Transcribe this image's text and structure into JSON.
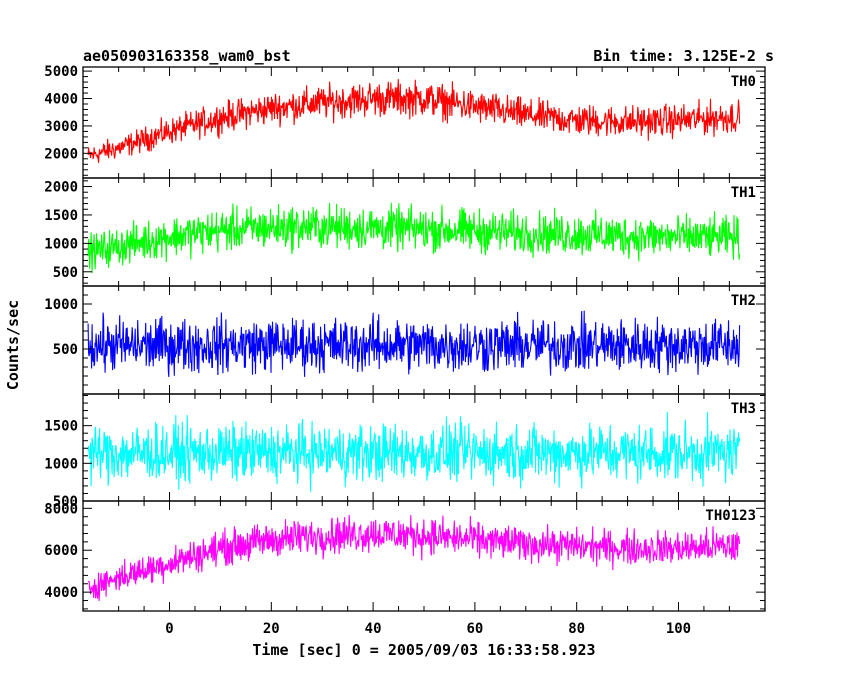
{
  "header": {
    "title": "ae050903163358_wam0_bst",
    "bin_time": "Bin time: 3.125E-2 s"
  },
  "chart_data": {
    "type": "line",
    "title": "ae050903163358_wam0_bst",
    "subtitle": "Bin time: 3.125E-2 s",
    "xlabel": "Time [sec] 0 = 2005/09/03 16:33:58.923",
    "ylabel": "Counts/sec",
    "xlim": [
      -17,
      117
    ],
    "x_ticks": [
      0,
      20,
      40,
      60,
      80,
      100
    ],
    "x_tick_labels": [
      "0",
      "20",
      "40",
      "60",
      "80",
      "100"
    ],
    "data_x_range": [
      -16,
      112
    ],
    "panels": [
      {
        "name": "TH0",
        "color": "#ff0000",
        "ylim": [
          1100,
          5150
        ],
        "yticks": [
          2000,
          3000,
          4000,
          5000
        ],
        "ytick_labels": [
          "2000",
          "3000",
          "4000",
          "5000"
        ],
        "envelope": {
          "x": [
            -16,
            -10,
            0,
            10,
            20,
            30,
            40,
            50,
            60,
            70,
            80,
            90,
            100,
            112
          ],
          "mean": [
            1900,
            2200,
            2800,
            3300,
            3650,
            3850,
            4000,
            4000,
            3700,
            3400,
            3200,
            3150,
            3200,
            3350
          ],
          "halfwidth": [
            550,
            600,
            700,
            800,
            850,
            900,
            950,
            950,
            900,
            850,
            850,
            850,
            850,
            900
          ]
        }
      },
      {
        "name": "TH1",
        "color": "#00ff00",
        "ylim": [
          250,
          2150
        ],
        "yticks": [
          500,
          1000,
          1500,
          2000
        ],
        "ytick_labels": [
          "500",
          "1000",
          "1500",
          "2000"
        ],
        "envelope": {
          "x": [
            -16,
            -10,
            0,
            10,
            20,
            30,
            40,
            50,
            60,
            70,
            80,
            90,
            100,
            112
          ],
          "mean": [
            850,
            950,
            1120,
            1230,
            1280,
            1290,
            1270,
            1250,
            1220,
            1180,
            1160,
            1130,
            1110,
            1100
          ],
          "halfwidth": [
            450,
            480,
            520,
            550,
            560,
            560,
            560,
            560,
            550,
            540,
            540,
            540,
            530,
            530
          ]
        }
      },
      {
        "name": "TH2",
        "color": "#0000ff",
        "ylim": [
          0,
          1200
        ],
        "yticks": [
          500,
          1000
        ],
        "ytick_labels": [
          "500",
          "1000"
        ],
        "envelope": {
          "x": [
            -16,
            0,
            20,
            40,
            60,
            80,
            100,
            112
          ],
          "mean": [
            540,
            540,
            545,
            545,
            540,
            540,
            540,
            540
          ],
          "halfwidth": [
            440,
            440,
            440,
            440,
            440,
            440,
            440,
            440
          ]
        }
      },
      {
        "name": "TH3",
        "color": "#00ffff",
        "ylim": [
          500,
          1920
        ],
        "yticks": [
          500,
          1000,
          1500
        ],
        "ytick_labels": [
          "500",
          "1000",
          "1500"
        ],
        "envelope": {
          "x": [
            -16,
            0,
            20,
            40,
            60,
            80,
            100,
            112
          ],
          "mean": [
            1130,
            1140,
            1140,
            1140,
            1140,
            1140,
            1140,
            1140
          ],
          "halfwidth": [
            560,
            560,
            560,
            560,
            560,
            560,
            560,
            560
          ]
        }
      },
      {
        "name": "TH0123",
        "color": "#ff00ff",
        "ylim": [
          3100,
          8350
        ],
        "yticks": [
          4000,
          6000,
          8000
        ],
        "ytick_labels": [
          "4000",
          "6000",
          "8000"
        ],
        "envelope": {
          "x": [
            -16,
            -10,
            0,
            10,
            20,
            30,
            40,
            50,
            60,
            70,
            80,
            90,
            100,
            112
          ],
          "mean": [
            4200,
            4700,
            5400,
            6100,
            6500,
            6700,
            6800,
            6700,
            6500,
            6300,
            6200,
            6100,
            6100,
            6200
          ],
          "halfwidth": [
            900,
            1000,
            1100,
            1200,
            1250,
            1300,
            1300,
            1300,
            1250,
            1200,
            1200,
            1200,
            1200,
            1250
          ]
        }
      }
    ]
  }
}
